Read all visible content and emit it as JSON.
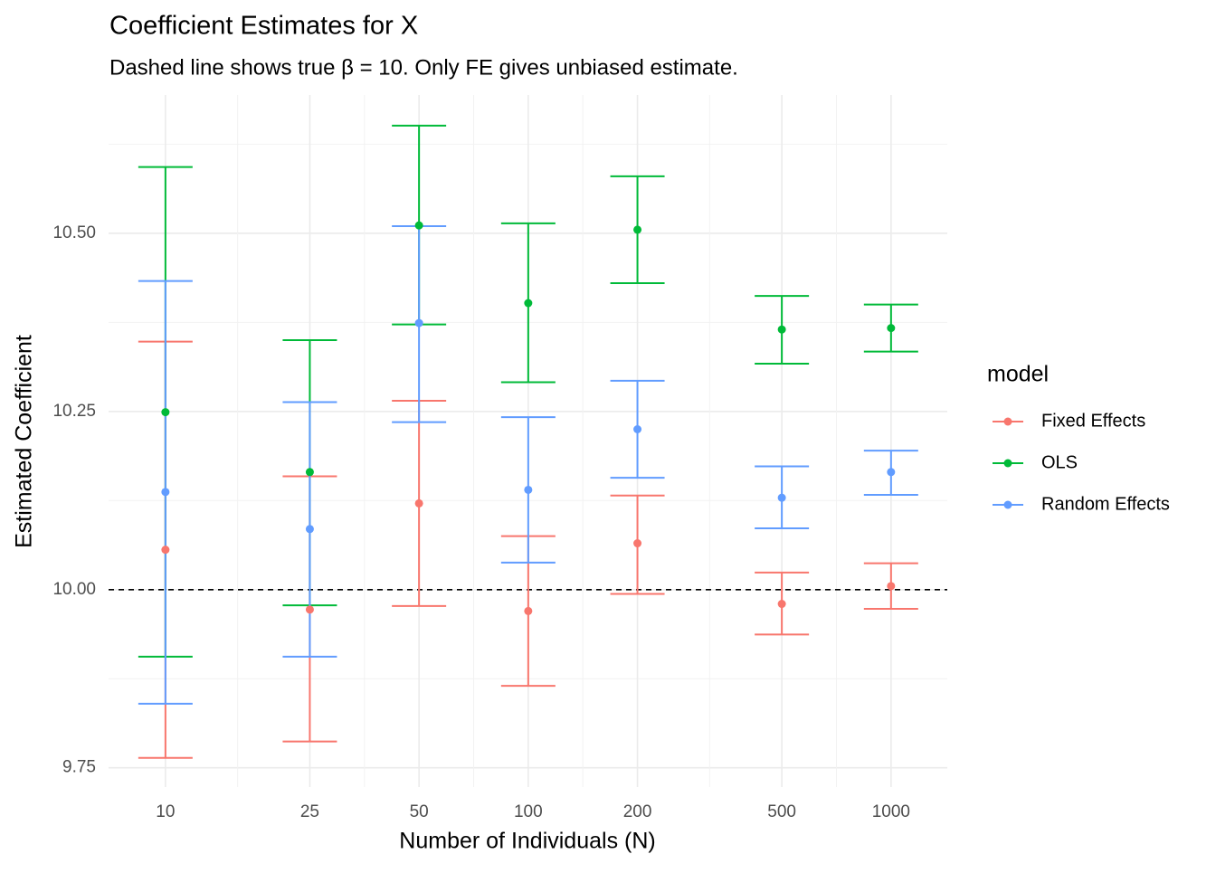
{
  "chart_data": {
    "type": "errorbar",
    "title": "Coefficient Estimates for X",
    "subtitle": "Dashed line shows true β = 10. Only FE gives unbiased estimate.",
    "x_label": "Number of Individuals (N)",
    "y_label": "Estimated Coefficient",
    "x": [
      10,
      25,
      50,
      100,
      200,
      500,
      1000
    ],
    "x_scale": "log",
    "xlim": [
      6.97,
      1429
    ],
    "xticks": [
      10,
      25,
      50,
      100,
      200,
      500,
      1000
    ],
    "ylim": [
      9.723,
      10.694
    ],
    "yticks": [
      9.75,
      {
        "value": 10,
        "label": "10.00"
      },
      10.25,
      {
        "value": 10.5,
        "label": "10.50"
      }
    ],
    "grid": true,
    "reference_line": 10,
    "legend_title": "model",
    "legend_position": "right",
    "series": [
      {
        "name": "Fixed Effects",
        "color": "#F8766D",
        "values": [
          10.056,
          9.972,
          10.121,
          9.97,
          10.065,
          9.98,
          10.005
        ],
        "lower": [
          9.764,
          9.787,
          9.977,
          9.865,
          9.994,
          9.937,
          9.973
        ],
        "upper": [
          10.348,
          10.159,
          10.265,
          10.075,
          10.132,
          10.024,
          10.037
        ]
      },
      {
        "name": "OLS",
        "color": "#00BA38",
        "values": [
          10.249,
          10.165,
          10.511,
          10.402,
          10.505,
          10.365,
          10.367
        ],
        "lower": [
          9.906,
          9.978,
          10.372,
          10.291,
          10.43,
          10.317,
          10.334
        ],
        "upper": [
          10.593,
          10.35,
          10.651,
          10.514,
          10.58,
          10.412,
          10.4
        ]
      },
      {
        "name": "Random Effects",
        "color": "#619CFF",
        "values": [
          10.137,
          10.085,
          10.374,
          10.14,
          10.225,
          10.129,
          10.165
        ],
        "lower": [
          9.84,
          9.906,
          10.235,
          10.038,
          10.157,
          10.086,
          10.133
        ],
        "upper": [
          10.433,
          10.263,
          10.51,
          10.242,
          10.293,
          10.173,
          10.195
        ]
      }
    ]
  }
}
